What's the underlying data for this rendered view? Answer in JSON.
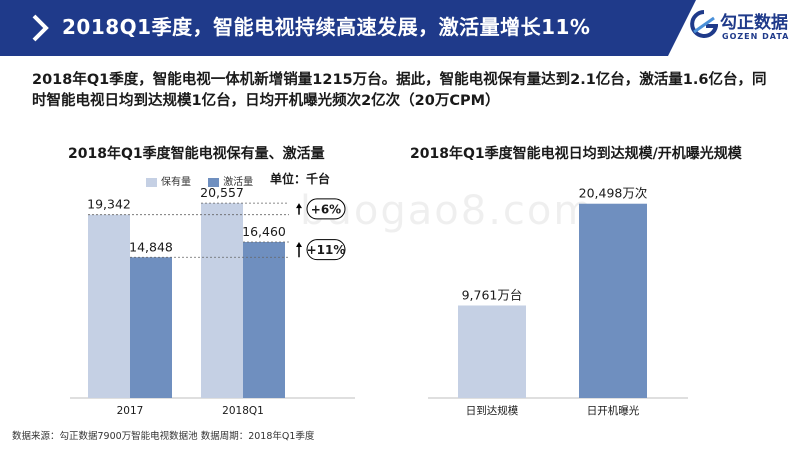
{
  "header": {
    "title": "2018Q1季度，智能电视持续高速发展，激活量增长11%"
  },
  "logo": {
    "name": "勾正数据",
    "subtitle": "GOZEN DATA"
  },
  "summary": "2018年Q1季度，智能电视一体机新增销量1215万台。据此，智能电视保有量达到2.1亿台，激活量1.6亿台，同时智能电视日均到达规模1亿台，日均开机曝光频次2亿次（20万CPM）",
  "watermark": "baogao8.com",
  "source": "数据来源：勾正数据7900万智能电视数据池  数据周期：2018年Q1季度",
  "colors": {
    "header": "#1f3a8a",
    "light_bar": "#c5d0e4",
    "dark_bar": "#6f8fbf"
  },
  "chart_data": [
    {
      "type": "bar",
      "title": "2018年Q1季度智能电视保有量、激活量",
      "unit_label": "单位：千台",
      "categories": [
        "2017",
        "2018Q1"
      ],
      "series": [
        {
          "name": "保有量",
          "values": [
            19342,
            20557
          ],
          "labels": [
            "19,342",
            "20,557"
          ]
        },
        {
          "name": "激活量",
          "values": [
            14848,
            16460
          ],
          "labels": [
            "14,848",
            "16,460"
          ]
        }
      ],
      "annotations": [
        "+6%",
        "+11%"
      ],
      "ylim": [
        0,
        23000
      ],
      "legend": "top"
    },
    {
      "type": "bar",
      "title": "2018年Q1季度智能电视日均到达规模/开机曝光规模",
      "categories": [
        "日到达规模",
        "日开机曝光"
      ],
      "values": [
        9761,
        20498
      ],
      "labels": [
        "9,761万台",
        "20,498万次"
      ],
      "ylim": [
        0,
        23000
      ]
    }
  ]
}
